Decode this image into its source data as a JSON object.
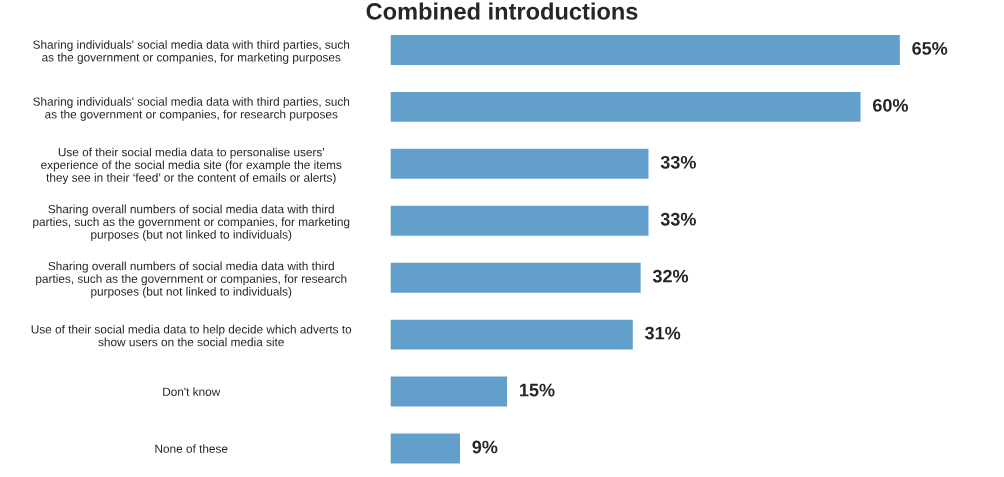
{
  "chart_data": {
    "type": "bar",
    "orientation": "horizontal",
    "title": "Combined introductions",
    "categories": [
      "Sharing individuals' social media data with third parties, such\nas the government or companies, for marketing purposes",
      "Sharing individuals' social media data with third parties, such\nas the government or companies, for research purposes",
      "Use of their social media data to personalise users'\nexperience of the social media site (for example the items\nthey see in their ‘feed’ or the content of emails or alerts)",
      "Sharing overall numbers of social media data with third\nparties, such as the government or companies, for marketing\npurposes (but not linked to individuals)",
      "Sharing overall numbers of social media data with third\nparties, such as the government or companies, for research\npurposes (but not linked to individuals)",
      "Use of their social media data to help decide which adverts to\nshow users on the social media site",
      "Don't know",
      "None of these"
    ],
    "values": [
      65,
      60,
      33,
      33,
      32,
      31,
      15,
      9
    ],
    "value_labels": [
      "65%",
      "60%",
      "33%",
      "33%",
      "32%",
      "31%",
      "15%",
      "9%"
    ],
    "color": "#62a0cb"
  }
}
